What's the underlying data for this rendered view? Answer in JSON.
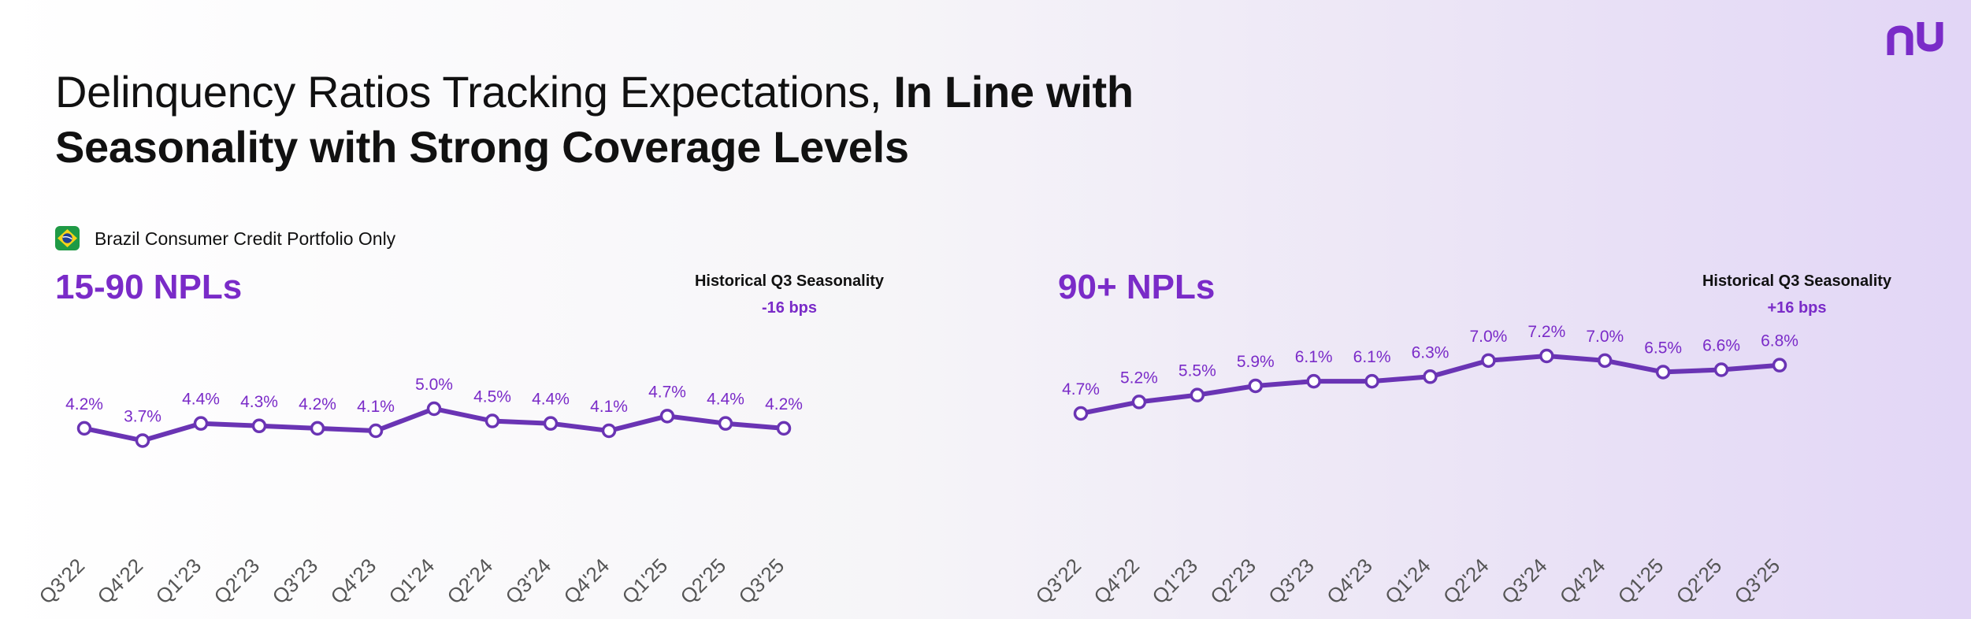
{
  "header": {
    "title_regular": "Delinquency Ratios Tracking Expectations,",
    "title_bold_1": "In Line with",
    "title_bold_2": "Seasonality with Strong Coverage Levels",
    "subtitle": "Brazil Consumer Credit Portfolio Only",
    "logo_text": "nu"
  },
  "colors": {
    "accent": "#7a2bc8",
    "line": "#6a34b4",
    "text": "#111111",
    "axis_label": "#555555",
    "marker_fill": "#ffffff"
  },
  "icons": {
    "flag": "brazil-flag-icon",
    "logo": "nubank-logo-icon"
  },
  "chart_data": [
    {
      "type": "line",
      "title": "15-90 NPLs",
      "annotation_label": "Historical Q3 Seasonality",
      "annotation_value": "-16 bps",
      "categories": [
        "Q3'22",
        "Q4'22",
        "Q1'23",
        "Q2'23",
        "Q3'23",
        "Q4'23",
        "Q1'24",
        "Q2'24",
        "Q3'24",
        "Q4'24",
        "Q1'25",
        "Q2'25",
        "Q3'25"
      ],
      "values": [
        4.2,
        3.7,
        4.4,
        4.3,
        4.2,
        4.1,
        5.0,
        4.5,
        4.4,
        4.1,
        4.7,
        4.4,
        4.2
      ],
      "data_labels": [
        "4.2%",
        "3.7%",
        "4.4%",
        "4.3%",
        "4.2%",
        "4.1%",
        "5.0%",
        "4.5%",
        "4.4%",
        "4.1%",
        "4.7%",
        "4.4%",
        "4.2%"
      ],
      "xlabel": "",
      "ylabel": "",
      "grid": false
    },
    {
      "type": "line",
      "title": "90+ NPLs",
      "annotation_label": "Historical Q3 Seasonality",
      "annotation_value": "+16 bps",
      "categories": [
        "Q3'22",
        "Q4'22",
        "Q1'23",
        "Q2'23",
        "Q3'23",
        "Q4'23",
        "Q1'24",
        "Q2'24",
        "Q3'24",
        "Q4'24",
        "Q1'25",
        "Q2'25",
        "Q3'25"
      ],
      "values": [
        4.7,
        5.2,
        5.5,
        5.9,
        6.1,
        6.1,
        6.3,
        7.0,
        7.2,
        7.0,
        6.5,
        6.6,
        6.8
      ],
      "data_labels": [
        "4.7%",
        "5.2%",
        "5.5%",
        "5.9%",
        "6.1%",
        "6.1%",
        "6.3%",
        "7.0%",
        "7.2%",
        "7.0%",
        "6.5%",
        "6.6%",
        "6.8%"
      ],
      "xlabel": "",
      "ylabel": "",
      "grid": false
    }
  ]
}
